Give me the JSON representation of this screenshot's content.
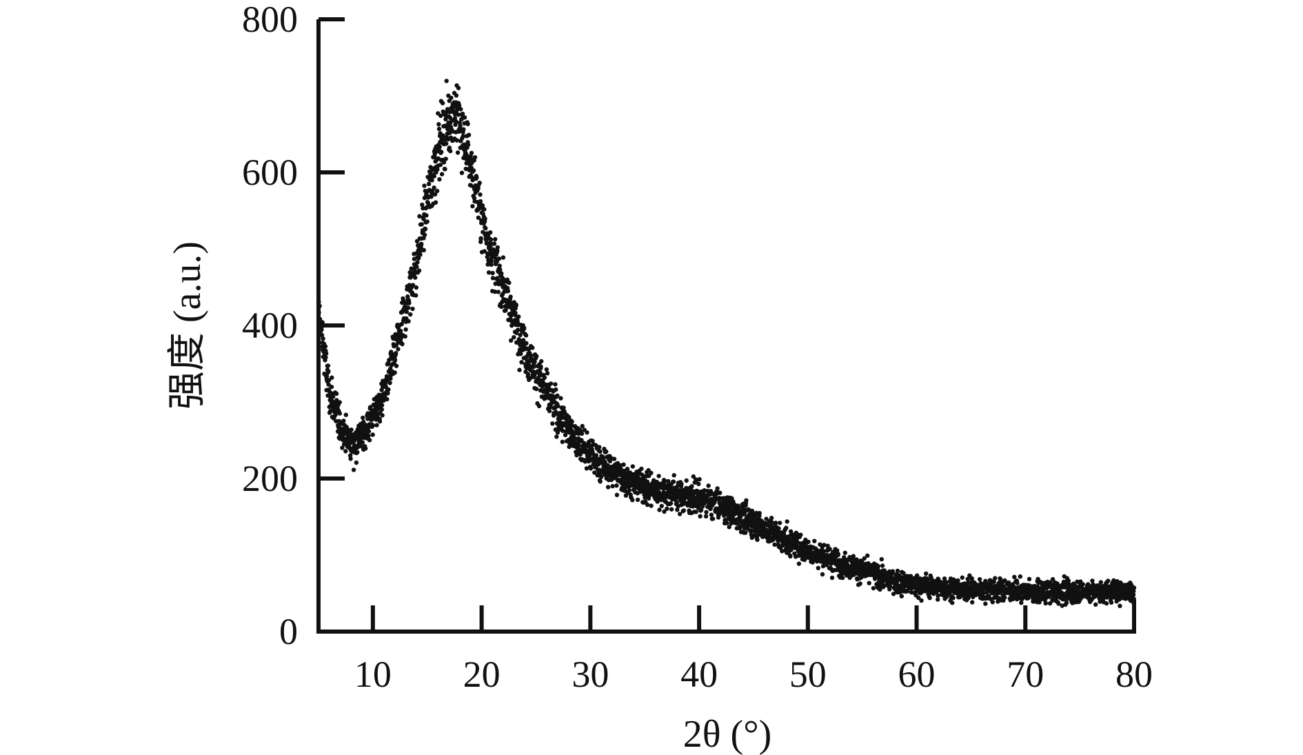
{
  "chart_data": {
    "type": "scatter",
    "title": "",
    "xlabel": "2θ (°)",
    "ylabel": "强度 (a.u.)",
    "xlim": [
      5,
      80
    ],
    "ylim": [
      0,
      800
    ],
    "x_ticks": [
      10,
      20,
      30,
      40,
      50,
      60,
      70,
      80
    ],
    "y_ticks": [
      0,
      200,
      400,
      600,
      800
    ],
    "grid": false,
    "legend": "none",
    "marker_color": "#111111",
    "series": [
      {
        "x": [
          5,
          6,
          7,
          8,
          9,
          10,
          11,
          12,
          13,
          14,
          15,
          16,
          17,
          17.5,
          18,
          19,
          20,
          21,
          22,
          23,
          24,
          25,
          26,
          27,
          28,
          29,
          30,
          32,
          34,
          36,
          38,
          40,
          42,
          44,
          46,
          48,
          50,
          52,
          54,
          56,
          58,
          60,
          62,
          64,
          66,
          68,
          70,
          72,
          74,
          76,
          78,
          80
        ],
        "y": [
          420,
          310,
          270,
          245,
          255,
          280,
          310,
          360,
          420,
          480,
          560,
          630,
          670,
          680,
          660,
          610,
          540,
          490,
          450,
          410,
          370,
          340,
          310,
          285,
          265,
          245,
          230,
          210,
          195,
          185,
          180,
          175,
          165,
          150,
          135,
          120,
          105,
          95,
          85,
          75,
          65,
          60,
          58,
          56,
          55,
          54,
          53,
          52,
          52,
          52,
          53,
          52
        ]
      }
    ]
  }
}
